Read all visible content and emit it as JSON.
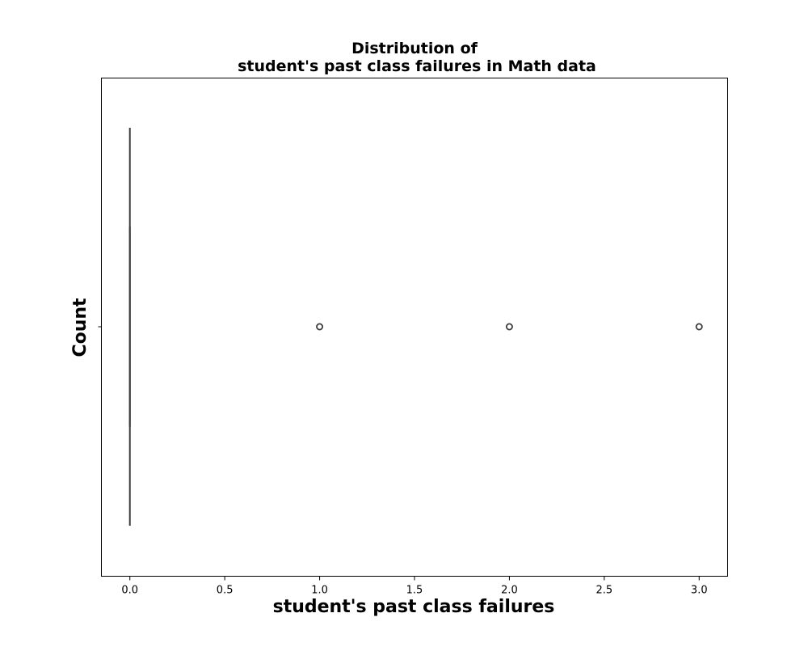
{
  "chart_data": {
    "type": "box",
    "orientation": "horizontal",
    "title_line1": "Distribution of",
    "title_line2": "student's past class failures in Math data",
    "xlabel": "student's past class failures",
    "ylabel": "Count",
    "xlim": [
      -0.15,
      3.15
    ],
    "x_ticks": [
      0.0,
      0.5,
      1.0,
      1.5,
      2.0,
      2.5,
      3.0
    ],
    "x_tick_labels": [
      "0.0",
      "0.5",
      "1.0",
      "1.5",
      "2.0",
      "2.5",
      "3.0"
    ],
    "grid": false,
    "box": {
      "min": 0.0,
      "q1": 0.0,
      "median": 0.0,
      "q3": 0.0,
      "max": 0.0
    },
    "outliers": [
      1.0,
      2.0,
      3.0
    ],
    "colors": {
      "box_line": "#3d3d3d",
      "frame": "#000000",
      "background": "#ffffff"
    }
  }
}
